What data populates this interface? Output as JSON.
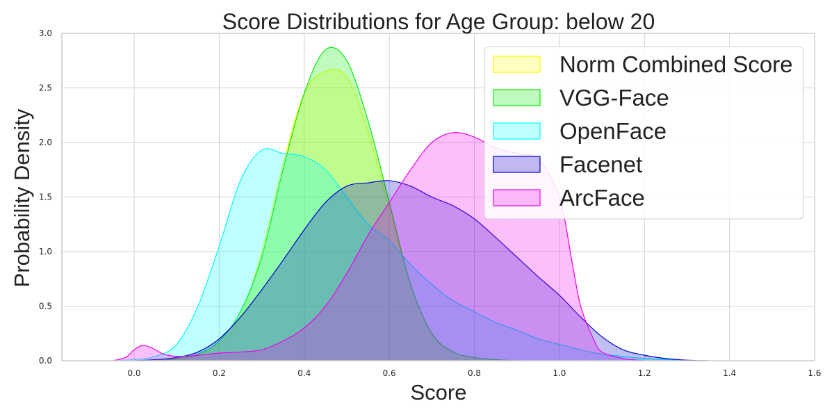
{
  "chart_data": {
    "type": "area",
    "title": "Score Distributions for Age Group: below 20",
    "xlabel": "Score",
    "ylabel": "Probability Density",
    "xlim": [
      -0.17,
      1.6
    ],
    "ylim": [
      0,
      3.0
    ],
    "xticks": [
      "0.0",
      "0.2",
      "0.4",
      "0.6",
      "0.8",
      "1.0",
      "1.2",
      "1.4",
      "1.6"
    ],
    "yticks": [
      "0.0",
      "0.5",
      "1.0",
      "1.5",
      "2.0",
      "2.5",
      "3.0"
    ],
    "grid": true,
    "legend_position": "top-right",
    "series": [
      {
        "name": "Norm Combined Score",
        "color": "#ffff00",
        "points": [
          [
            0.05,
            0
          ],
          [
            0.1,
            0.01
          ],
          [
            0.15,
            0.05
          ],
          [
            0.2,
            0.15
          ],
          [
            0.25,
            0.4
          ],
          [
            0.3,
            1.0
          ],
          [
            0.35,
            1.8
          ],
          [
            0.4,
            2.45
          ],
          [
            0.45,
            2.65
          ],
          [
            0.5,
            2.6
          ],
          [
            0.55,
            2.1
          ],
          [
            0.6,
            1.4
          ],
          [
            0.65,
            0.7
          ],
          [
            0.7,
            0.25
          ],
          [
            0.75,
            0.08
          ],
          [
            0.8,
            0.03
          ],
          [
            0.85,
            0.01
          ],
          [
            0.9,
            0
          ]
        ]
      },
      {
        "name": "VGG-Face",
        "color": "#00ee00",
        "points": [
          [
            0.05,
            0
          ],
          [
            0.1,
            0.02
          ],
          [
            0.15,
            0.06
          ],
          [
            0.2,
            0.18
          ],
          [
            0.25,
            0.45
          ],
          [
            0.3,
            0.95
          ],
          [
            0.35,
            1.75
          ],
          [
            0.4,
            2.45
          ],
          [
            0.45,
            2.85
          ],
          [
            0.5,
            2.75
          ],
          [
            0.55,
            2.2
          ],
          [
            0.6,
            1.45
          ],
          [
            0.65,
            0.7
          ],
          [
            0.7,
            0.25
          ],
          [
            0.75,
            0.08
          ],
          [
            0.8,
            0.03
          ],
          [
            0.85,
            0.01
          ],
          [
            0.9,
            0
          ]
        ]
      },
      {
        "name": "OpenFace",
        "color": "#00ffff",
        "points": [
          [
            -0.05,
            0
          ],
          [
            0.0,
            0.01
          ],
          [
            0.05,
            0.04
          ],
          [
            0.1,
            0.15
          ],
          [
            0.15,
            0.5
          ],
          [
            0.2,
            1.05
          ],
          [
            0.25,
            1.65
          ],
          [
            0.3,
            1.93
          ],
          [
            0.35,
            1.9
          ],
          [
            0.4,
            1.87
          ],
          [
            0.45,
            1.75
          ],
          [
            0.5,
            1.5
          ],
          [
            0.55,
            1.25
          ],
          [
            0.6,
            1.1
          ],
          [
            0.65,
            0.88
          ],
          [
            0.7,
            0.7
          ],
          [
            0.75,
            0.55
          ],
          [
            0.8,
            0.45
          ],
          [
            0.85,
            0.35
          ],
          [
            0.9,
            0.28
          ],
          [
            0.95,
            0.2
          ],
          [
            1.0,
            0.15
          ],
          [
            1.05,
            0.1
          ],
          [
            1.1,
            0.06
          ],
          [
            1.15,
            0.04
          ],
          [
            1.2,
            0.02
          ],
          [
            1.25,
            0.01
          ],
          [
            1.3,
            0
          ]
        ]
      },
      {
        "name": "Facenet",
        "color": "#0000cc",
        "points": [
          [
            0.0,
            0
          ],
          [
            0.05,
            0.01
          ],
          [
            0.1,
            0.03
          ],
          [
            0.15,
            0.08
          ],
          [
            0.2,
            0.2
          ],
          [
            0.25,
            0.4
          ],
          [
            0.3,
            0.65
          ],
          [
            0.35,
            0.92
          ],
          [
            0.4,
            1.2
          ],
          [
            0.45,
            1.45
          ],
          [
            0.5,
            1.6
          ],
          [
            0.55,
            1.63
          ],
          [
            0.6,
            1.65
          ],
          [
            0.65,
            1.6
          ],
          [
            0.7,
            1.5
          ],
          [
            0.75,
            1.42
          ],
          [
            0.8,
            1.3
          ],
          [
            0.85,
            1.13
          ],
          [
            0.9,
            0.95
          ],
          [
            0.95,
            0.77
          ],
          [
            1.0,
            0.6
          ],
          [
            1.05,
            0.4
          ],
          [
            1.1,
            0.22
          ],
          [
            1.15,
            0.1
          ],
          [
            1.2,
            0.05
          ],
          [
            1.25,
            0.02
          ],
          [
            1.3,
            0.005
          ],
          [
            1.35,
            0
          ]
        ]
      },
      {
        "name": "ArcFace",
        "color": "#ee00ee",
        "points": [
          [
            -0.05,
            0
          ],
          [
            -0.02,
            0.03
          ],
          [
            0.0,
            0.1
          ],
          [
            0.02,
            0.14
          ],
          [
            0.04,
            0.12
          ],
          [
            0.07,
            0.06
          ],
          [
            0.1,
            0.04
          ],
          [
            0.15,
            0.05
          ],
          [
            0.2,
            0.07
          ],
          [
            0.25,
            0.08
          ],
          [
            0.3,
            0.1
          ],
          [
            0.35,
            0.18
          ],
          [
            0.4,
            0.3
          ],
          [
            0.45,
            0.5
          ],
          [
            0.5,
            0.8
          ],
          [
            0.55,
            1.15
          ],
          [
            0.6,
            1.45
          ],
          [
            0.65,
            1.75
          ],
          [
            0.7,
            2.0
          ],
          [
            0.75,
            2.09
          ],
          [
            0.8,
            2.05
          ],
          [
            0.85,
            1.95
          ],
          [
            0.9,
            1.9
          ],
          [
            0.95,
            1.85
          ],
          [
            1.0,
            1.5
          ],
          [
            1.03,
            0.9
          ],
          [
            1.05,
            0.5
          ],
          [
            1.08,
            0.2
          ],
          [
            1.1,
            0.08
          ],
          [
            1.15,
            0.02
          ],
          [
            1.2,
            0
          ]
        ]
      }
    ]
  }
}
